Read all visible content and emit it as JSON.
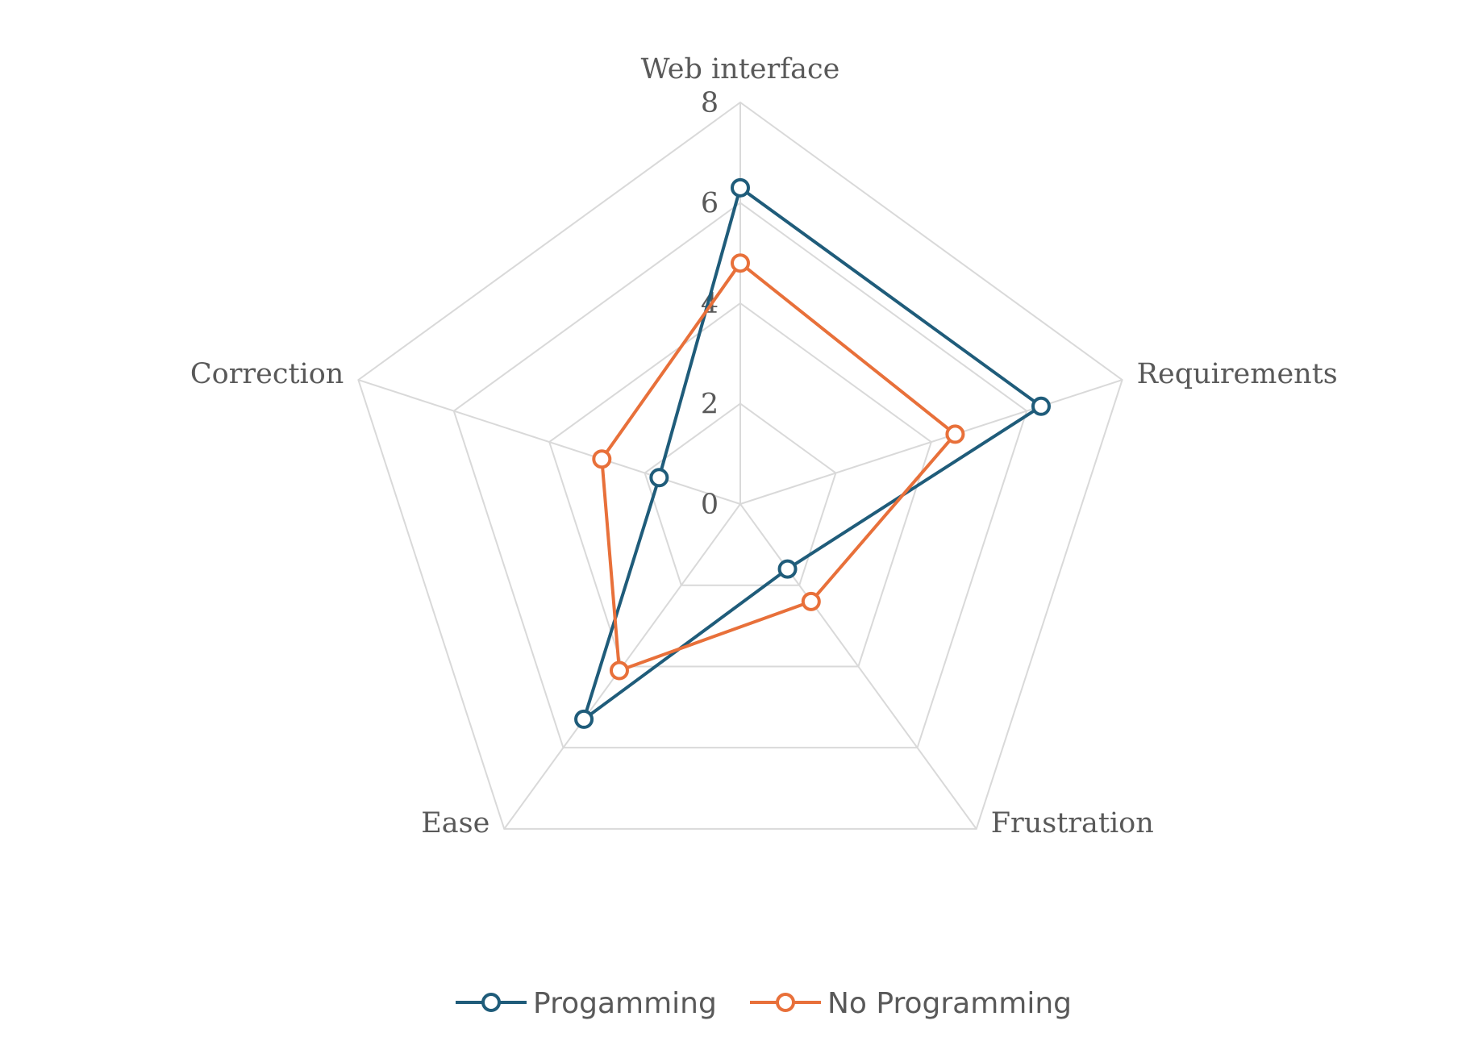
{
  "chart_data": {
    "type": "radar",
    "title": "",
    "axes": [
      "Web interface",
      "Requirements",
      "Frustration",
      "Ease",
      "Correction"
    ],
    "ticks": [
      "0",
      "2",
      "4",
      "6",
      "8"
    ],
    "range": [
      0,
      8
    ],
    "grid": true,
    "legend_position": "bottom",
    "series": [
      {
        "name": "Progamming",
        "color": "#1f5c7a",
        "values": [
          6.3,
          6.3,
          1.6,
          5.3,
          1.7
        ]
      },
      {
        "name": "No Programming",
        "color": "#e8703a",
        "values": [
          4.8,
          4.5,
          2.4,
          4.1,
          2.9
        ]
      }
    ]
  }
}
